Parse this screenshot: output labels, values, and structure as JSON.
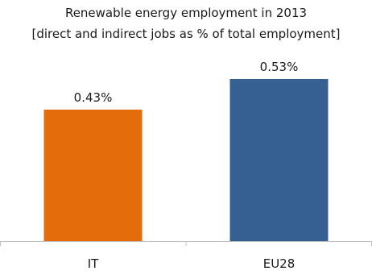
{
  "chart_data": {
    "type": "bar",
    "title_lines": [
      "Renewable energy employment in 2013",
      "[direct and indirect jobs as % of total employment]"
    ],
    "categories": [
      "IT",
      "EU28"
    ],
    "values": [
      0.43,
      0.53
    ],
    "value_labels": [
      "0.43%",
      "0.53%"
    ],
    "colors": [
      "#e46c0a",
      "#376092"
    ],
    "axis_color": "#bfbfbf",
    "ylim": [
      0,
      0.6
    ],
    "grid": false,
    "legend": "none",
    "xlabel": "",
    "ylabel": ""
  }
}
